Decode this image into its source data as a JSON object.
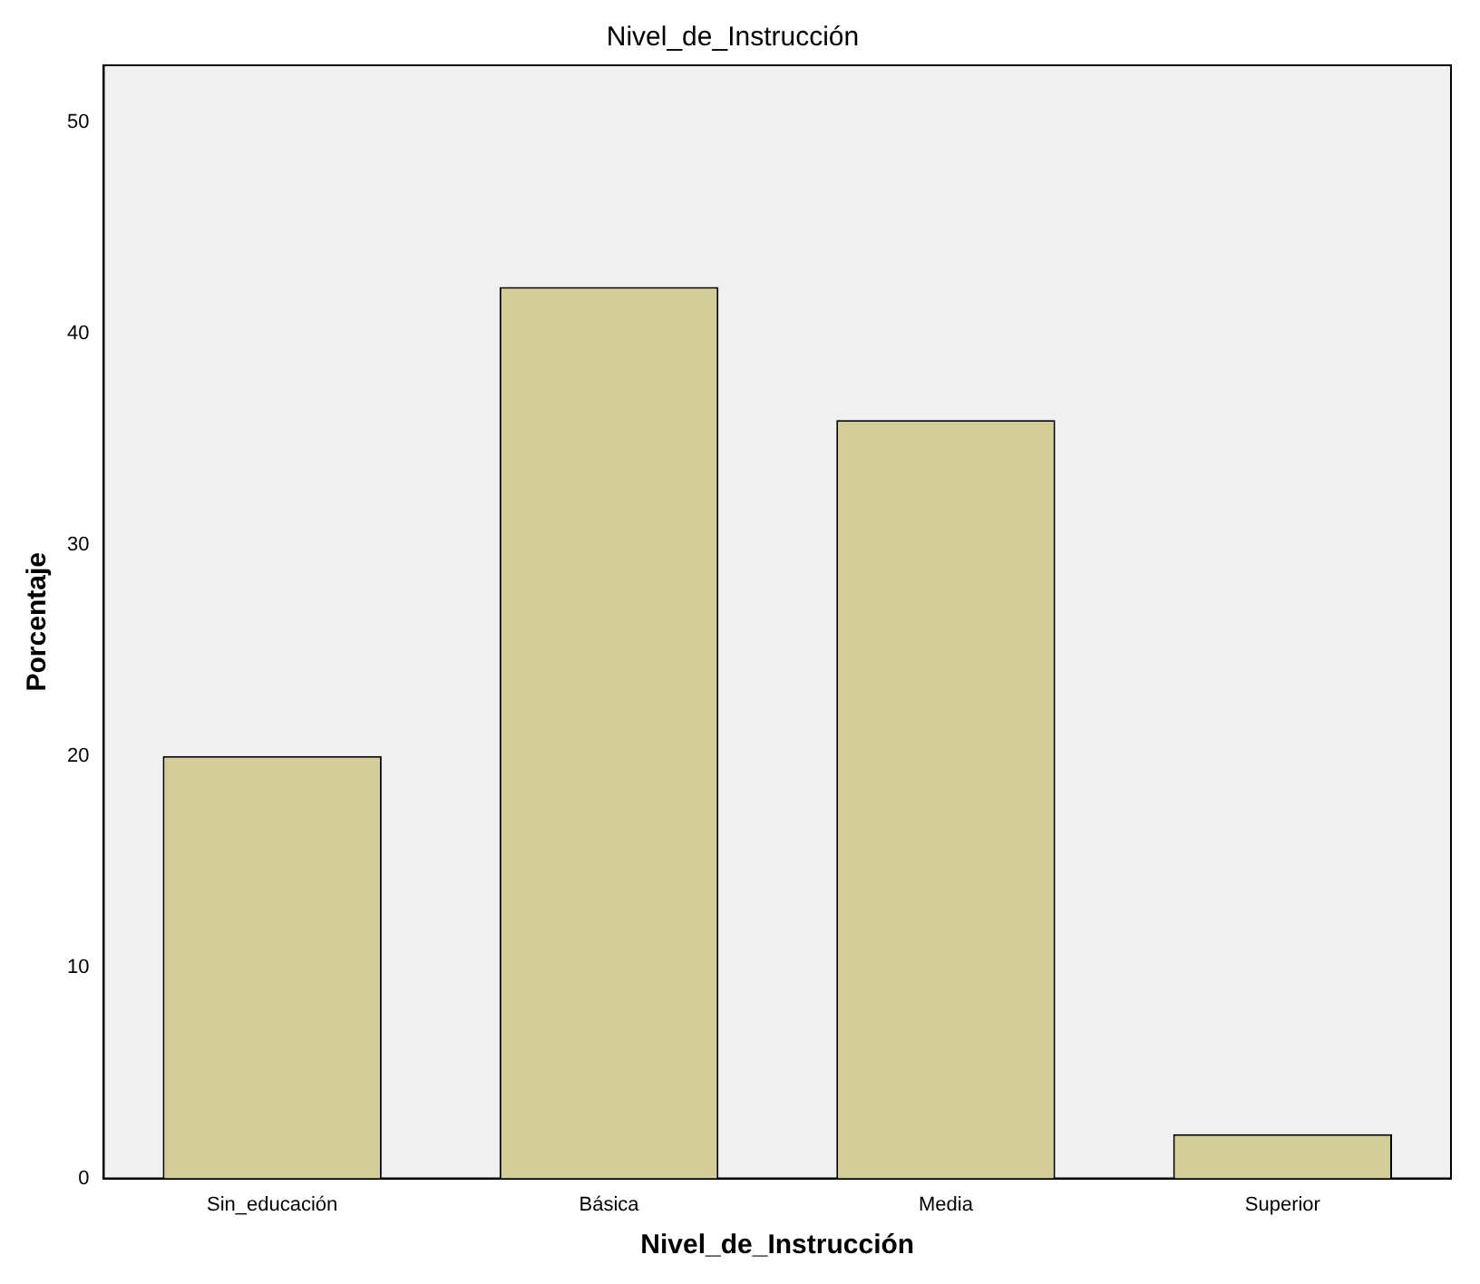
{
  "chart_data": {
    "type": "bar",
    "title": "Nivel_de_Instrucción",
    "xlabel": "Nivel_de_Instrucción",
    "ylabel": "Porcentaje",
    "categories": [
      "Sin_educación",
      "Básica",
      "Media",
      "Superior"
    ],
    "values": [
      20.0,
      42.2,
      35.9,
      2.1
    ],
    "color": "#d3ce97",
    "ylim": [
      0,
      52.7
    ],
    "yticks": [
      0,
      10,
      20,
      30,
      40,
      50
    ],
    "grid": false,
    "legend": false
  }
}
